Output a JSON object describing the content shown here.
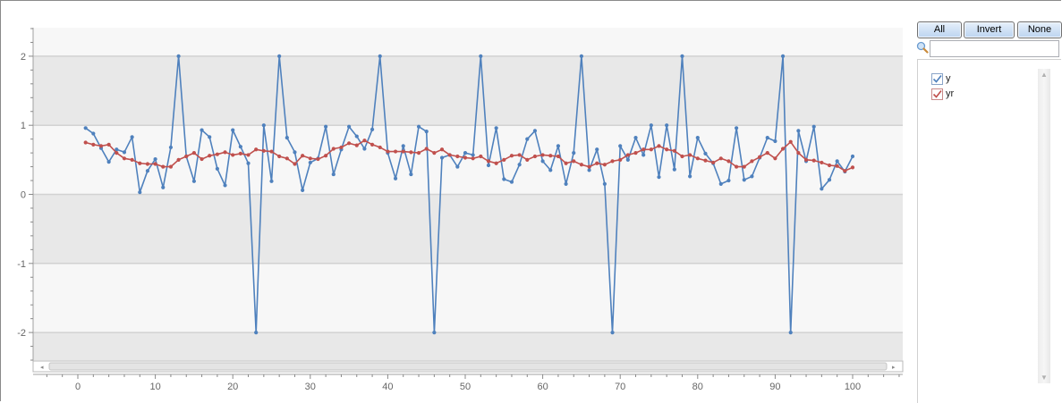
{
  "chart_data": {
    "type": "line",
    "title": "",
    "xlabel": "",
    "ylabel": "",
    "xlim": [
      -5,
      106
    ],
    "ylim": [
      -2.4,
      2.4
    ],
    "x_ticks": [
      "0",
      "10",
      "20",
      "30",
      "40",
      "50",
      "60",
      "70",
      "80",
      "90",
      "100"
    ],
    "y_ticks": [
      "2",
      "1",
      "0",
      "-1",
      "-2"
    ],
    "grid": true,
    "legend_position": "right",
    "x": [
      1,
      2,
      3,
      4,
      5,
      6,
      7,
      8,
      9,
      10,
      11,
      12,
      13,
      14,
      15,
      16,
      17,
      18,
      19,
      20,
      21,
      22,
      23,
      24,
      25,
      26,
      27,
      28,
      29,
      30,
      31,
      32,
      33,
      34,
      35,
      36,
      37,
      38,
      39,
      40,
      41,
      42,
      43,
      44,
      45,
      46,
      47,
      48,
      49,
      50,
      51,
      52,
      53,
      54,
      55,
      56,
      57,
      58,
      59,
      60,
      61,
      62,
      63,
      64,
      65,
      66,
      67,
      68,
      69,
      70,
      71,
      72,
      73,
      74,
      75,
      76,
      77,
      78,
      79,
      80,
      81,
      82,
      83,
      84,
      85,
      86,
      87,
      88,
      89,
      90,
      91,
      92,
      93,
      94,
      95,
      96,
      97,
      98,
      99,
      100
    ],
    "series": [
      {
        "name": "y",
        "color": "#4f81bd",
        "values": [
          0.96,
          0.88,
          0.67,
          0.47,
          0.65,
          0.61,
          0.83,
          0.03,
          0.34,
          0.51,
          0.1,
          0.68,
          2,
          0.55,
          0.19,
          0.93,
          0.83,
          0.37,
          0.13,
          0.93,
          0.69,
          0.45,
          -2,
          1.0,
          0.19,
          2,
          0.82,
          0.61,
          0.06,
          0.46,
          0.52,
          0.98,
          0.29,
          0.65,
          0.98,
          0.84,
          0.66,
          0.94,
          2,
          0.6,
          0.23,
          0.7,
          0.29,
          0.98,
          0.91,
          -2,
          0.53,
          0.57,
          0.4,
          0.6,
          0.57,
          2,
          0.42,
          0.96,
          0.22,
          0.18,
          0.43,
          0.8,
          0.92,
          0.48,
          0.35,
          0.7,
          0.15,
          0.6,
          2,
          0.35,
          0.65,
          0.15,
          -2,
          0.7,
          0.5,
          0.82,
          0.57,
          1.0,
          0.25,
          1.0,
          0.36,
          2,
          0.26,
          0.82,
          0.59,
          0.45,
          0.15,
          0.2,
          0.96,
          0.21,
          0.26,
          0.53,
          0.82,
          0.77,
          2,
          -2,
          0.92,
          0.48,
          0.98,
          0.08,
          0.21,
          0.48,
          0.33,
          0.55
        ]
      },
      {
        "name": "yr",
        "color": "#c0504d",
        "values": [
          0.75,
          0.72,
          0.7,
          0.72,
          0.6,
          0.52,
          0.5,
          0.45,
          0.44,
          0.44,
          0.4,
          0.4,
          0.5,
          0.55,
          0.6,
          0.51,
          0.56,
          0.58,
          0.61,
          0.57,
          0.59,
          0.57,
          0.65,
          0.63,
          0.62,
          0.55,
          0.52,
          0.44,
          0.56,
          0.52,
          0.51,
          0.56,
          0.66,
          0.68,
          0.74,
          0.71,
          0.78,
          0.72,
          0.68,
          0.62,
          0.62,
          0.62,
          0.61,
          0.6,
          0.66,
          0.6,
          0.65,
          0.57,
          0.55,
          0.53,
          0.52,
          0.55,
          0.48,
          0.45,
          0.5,
          0.56,
          0.57,
          0.5,
          0.55,
          0.57,
          0.56,
          0.55,
          0.45,
          0.48,
          0.43,
          0.4,
          0.45,
          0.43,
          0.48,
          0.5,
          0.57,
          0.6,
          0.65,
          0.65,
          0.7,
          0.65,
          0.63,
          0.55,
          0.57,
          0.52,
          0.49,
          0.46,
          0.52,
          0.48,
          0.4,
          0.4,
          0.48,
          0.54,
          0.6,
          0.52,
          0.66,
          0.76,
          0.6,
          0.5,
          0.49,
          0.46,
          0.42,
          0.41,
          0.34,
          0.39
        ]
      }
    ]
  },
  "panel": {
    "buttons": {
      "all": "All",
      "invert": "Invert",
      "none": "None"
    },
    "search": {
      "value": "",
      "placeholder": ""
    },
    "series_list": [
      {
        "label": "y",
        "checked": true,
        "color": "#4f81bd"
      },
      {
        "label": "yr",
        "checked": true,
        "color": "#c0504d"
      }
    ]
  }
}
